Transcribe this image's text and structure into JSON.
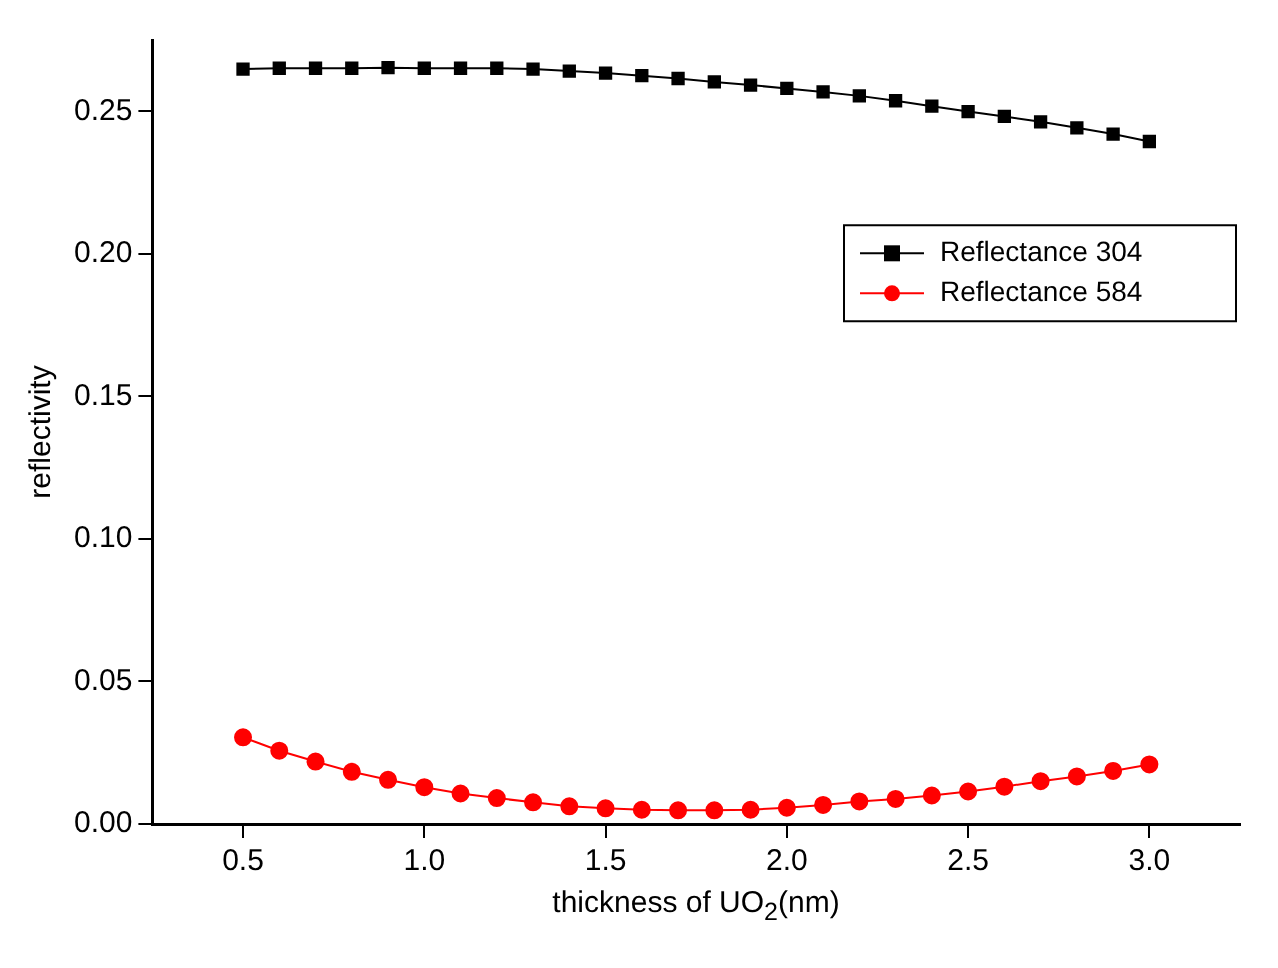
{
  "chart_data": {
    "type": "line",
    "xlabel": "thickness of UO$_{2}$(nm)",
    "ylabel": "reflectivity",
    "x": [
      0.5,
      0.6,
      0.7,
      0.8,
      0.9,
      1.0,
      1.1,
      1.2,
      1.3,
      1.4,
      1.5,
      1.6,
      1.7,
      1.8,
      1.9,
      2.0,
      2.1,
      2.2,
      2.3,
      2.4,
      2.5,
      2.6,
      2.7,
      2.8,
      2.9,
      3.0
    ],
    "series": [
      {
        "name": "Reflectance 304",
        "color": "#000000",
        "marker": "square",
        "values": [
          0.2648,
          0.2651,
          0.2651,
          0.2651,
          0.2653,
          0.2651,
          0.2651,
          0.2651,
          0.2648,
          0.2641,
          0.2634,
          0.2625,
          0.2615,
          0.2603,
          0.2592,
          0.258,
          0.2568,
          0.2554,
          0.2537,
          0.2518,
          0.2499,
          0.2482,
          0.2463,
          0.2442,
          0.242,
          0.2394
        ]
      },
      {
        "name": "Reflectance 584",
        "color": "#ff0000",
        "marker": "circle",
        "values": [
          0.0304,
          0.0257,
          0.0219,
          0.0183,
          0.0155,
          0.0129,
          0.0107,
          0.0091,
          0.0076,
          0.0062,
          0.0055,
          0.005,
          0.0048,
          0.0048,
          0.005,
          0.0057,
          0.0067,
          0.0079,
          0.0088,
          0.01,
          0.0114,
          0.0131,
          0.015,
          0.0167,
          0.0186,
          0.0209
        ]
      }
    ],
    "xlim": [
      0.25,
      3.25
    ],
    "xticks": [
      {
        "value": 0.5,
        "label": "0.5"
      },
      {
        "value": 1.0,
        "label": "1.0"
      },
      {
        "value": 1.5,
        "label": "1.5"
      },
      {
        "value": 2.0,
        "label": "2.0"
      },
      {
        "value": 2.5,
        "label": "2.5"
      },
      {
        "value": 3.0,
        "label": "3.0"
      }
    ],
    "ylim": [
      0,
      0.275
    ],
    "yticks": [
      {
        "value": 0,
        "label": "0.00"
      },
      {
        "value": 0.05,
        "label": "0.05"
      },
      {
        "value": 0.1,
        "label": "0.10"
      },
      {
        "value": 0.15,
        "label": "0.15"
      },
      {
        "value": 0.2,
        "label": "0.20"
      },
      {
        "value": 0.25,
        "label": "0.25"
      }
    ],
    "grid": false,
    "legend": "right",
    "line_style": "solid"
  }
}
